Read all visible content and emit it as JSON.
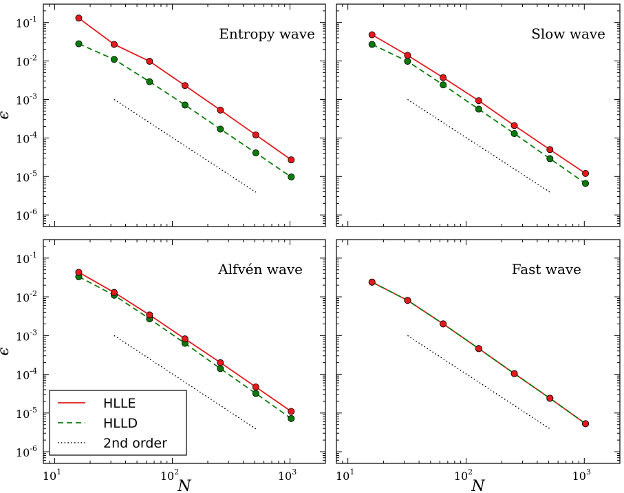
{
  "chart_data": [
    {
      "type": "line",
      "title": "Entropy wave",
      "xlabel": "",
      "ylabel": "ϵ",
      "xscale": "log",
      "yscale": "log",
      "xlim": [
        8,
        2000
      ],
      "ylim": [
        5e-07,
        0.3
      ],
      "x": [
        16,
        32,
        64,
        128,
        256,
        512,
        1024
      ],
      "series": [
        {
          "name": "HLLE",
          "color": "#e31a1c",
          "style": "solid",
          "marker": "circle",
          "values": [
            0.13,
            0.027,
            0.0098,
            0.0023,
            0.00053,
            0.00012,
            2.7e-05
          ]
        },
        {
          "name": "HLLD",
          "color": "#0a7a0a",
          "style": "dashed",
          "marker": "circle",
          "values": [
            0.028,
            0.011,
            0.0029,
            0.00072,
            0.00017,
            4.1e-05,
            9.7e-06
          ]
        },
        {
          "name": "2nd order",
          "color": "#000000",
          "style": "dotted",
          "x": [
            32,
            512
          ],
          "values": [
            0.001,
            3.9e-06
          ]
        }
      ]
    },
    {
      "type": "line",
      "title": "Slow wave",
      "xlabel": "",
      "ylabel": "",
      "xscale": "log",
      "yscale": "log",
      "xlim": [
        8,
        2000
      ],
      "ylim": [
        5e-07,
        0.3
      ],
      "x": [
        16,
        32,
        64,
        128,
        256,
        512,
        1024
      ],
      "series": [
        {
          "name": "HLLE",
          "color": "#e31a1c",
          "style": "solid",
          "marker": "circle",
          "values": [
            0.048,
            0.014,
            0.0037,
            0.00093,
            0.00021,
            5e-05,
            1.2e-05
          ]
        },
        {
          "name": "HLLD",
          "color": "#0a7a0a",
          "style": "dashed",
          "marker": "circle",
          "values": [
            0.027,
            0.0098,
            0.0024,
            0.00056,
            0.00013,
            2.9e-05,
            6.6e-06
          ]
        },
        {
          "name": "2nd order",
          "color": "#000000",
          "style": "dotted",
          "x": [
            32,
            512
          ],
          "values": [
            0.001,
            3.9e-06
          ]
        }
      ]
    },
    {
      "type": "line",
      "title": "Alfvén wave",
      "xlabel": "N",
      "ylabel": "ϵ",
      "xscale": "log",
      "yscale": "log",
      "xlim": [
        8,
        2000
      ],
      "ylim": [
        5e-07,
        0.3
      ],
      "x": [
        16,
        32,
        64,
        128,
        256,
        512,
        1024
      ],
      "series": [
        {
          "name": "HLLE",
          "color": "#e31a1c",
          "style": "solid",
          "marker": "circle",
          "values": [
            0.043,
            0.013,
            0.0034,
            0.00082,
            0.0002,
            4.7e-05,
            1.1e-05
          ]
        },
        {
          "name": "HLLD",
          "color": "#0a7a0a",
          "style": "dashed",
          "marker": "circle",
          "values": [
            0.033,
            0.011,
            0.0027,
            0.00063,
            0.00014,
            3.2e-05,
            7.2e-06
          ]
        },
        {
          "name": "2nd order",
          "color": "#000000",
          "style": "dotted",
          "x": [
            32,
            512
          ],
          "values": [
            0.001,
            3.9e-06
          ]
        }
      ],
      "legend": {
        "placement": "lower-left",
        "entries": [
          "HLLE",
          "HLLD",
          "2nd order"
        ]
      }
    },
    {
      "type": "line",
      "title": "Fast wave",
      "xlabel": "N",
      "ylabel": "",
      "xscale": "log",
      "yscale": "log",
      "xlim": [
        8,
        2000
      ],
      "ylim": [
        5e-07,
        0.3
      ],
      "x": [
        16,
        32,
        64,
        128,
        256,
        512,
        1024
      ],
      "series": [
        {
          "name": "HLLE",
          "color": "#e31a1c",
          "style": "solid",
          "marker": "circle",
          "values": [
            0.024,
            0.0081,
            0.002,
            0.00046,
            0.000104,
            2.4e-05,
            5.3e-06
          ]
        },
        {
          "name": "HLLD",
          "color": "#0a7a0a",
          "style": "dashed",
          "marker": "circle",
          "values": [
            0.024,
            0.0081,
            0.002,
            0.00046,
            0.000104,
            2.4e-05,
            5.3e-06
          ]
        },
        {
          "name": "2nd order",
          "color": "#000000",
          "style": "dotted",
          "x": [
            32,
            512
          ],
          "values": [
            0.001,
            3.9e-06
          ]
        }
      ]
    }
  ],
  "tick_labels": {
    "x": [
      {
        "base": "10",
        "exp": "1",
        "value": 10
      },
      {
        "base": "10",
        "exp": "2",
        "value": 100
      },
      {
        "base": "10",
        "exp": "3",
        "value": 1000
      }
    ],
    "y": [
      {
        "base": "10",
        "exp": "-1",
        "value": 0.1
      },
      {
        "base": "10",
        "exp": "-2",
        "value": 0.01
      },
      {
        "base": "10",
        "exp": "-3",
        "value": 0.001
      },
      {
        "base": "10",
        "exp": "-4",
        "value": 0.0001
      },
      {
        "base": "10",
        "exp": "-5",
        "value": 1e-05
      },
      {
        "base": "10",
        "exp": "-6",
        "value": 1e-06
      }
    ]
  }
}
